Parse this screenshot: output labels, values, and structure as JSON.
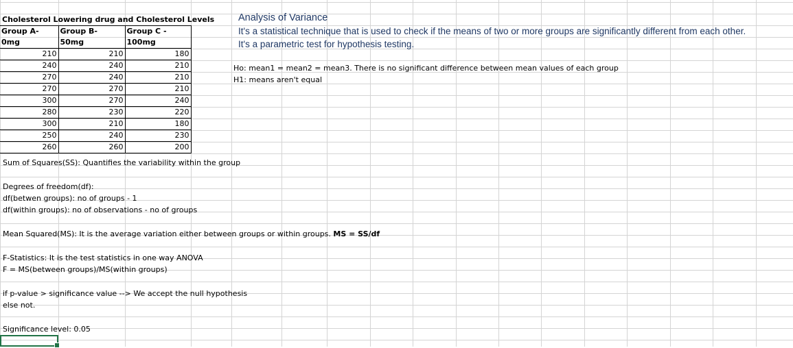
{
  "table": {
    "title": "Cholesterol Lowering drug and Cholesterol Levels",
    "headers": [
      "Group A-0mg",
      "Group B- 50mg",
      "Group C - 100mg"
    ],
    "rows": [
      [
        "210",
        "210",
        "180"
      ],
      [
        "240",
        "240",
        "210"
      ],
      [
        "270",
        "240",
        "210"
      ],
      [
        "270",
        "270",
        "210"
      ],
      [
        "300",
        "270",
        "240"
      ],
      [
        "280",
        "230",
        "220"
      ],
      [
        "300",
        "210",
        "180"
      ],
      [
        "250",
        "240",
        "230"
      ],
      [
        "260",
        "260",
        "200"
      ]
    ]
  },
  "anova": {
    "title": "Analysis of Variance",
    "desc1": "It's a statistical technique that is used to check if the means of two or more groups are significantly different from each other.",
    "desc2": "It's a parametric test for hypothesis testing.",
    "h0": "Ho: mean1 = mean2 = mean3. There is no significant difference between mean values of each group",
    "h1": "H1: means aren't equal"
  },
  "notes": {
    "ss": "Sum of Squares(SS): Quantifies the variability within the group",
    "df_title": "Degrees of freedom(df):",
    "df_between": "df(betwen groups): no of groups - 1",
    "df_within": "df(within groups): no of observations - no of groups",
    "ms_text": "Mean Squared(MS): It is the average variation either between groups or within groups.",
    "ms_formula": "MS = SS/df",
    "f_title": "F-Statistics: It is the test statistics in one way ANOVA",
    "f_formula": "F = MS(between groups)/MS(within groups)",
    "pvalue": "if p-value > significance value --> We accept the null hypothesis",
    "else": "else not.",
    "significance": "Significance level: 0.05"
  },
  "colors": {
    "gridline": "#d4d4d4",
    "heading_blue": "#1f3864",
    "selection": "#217346"
  }
}
